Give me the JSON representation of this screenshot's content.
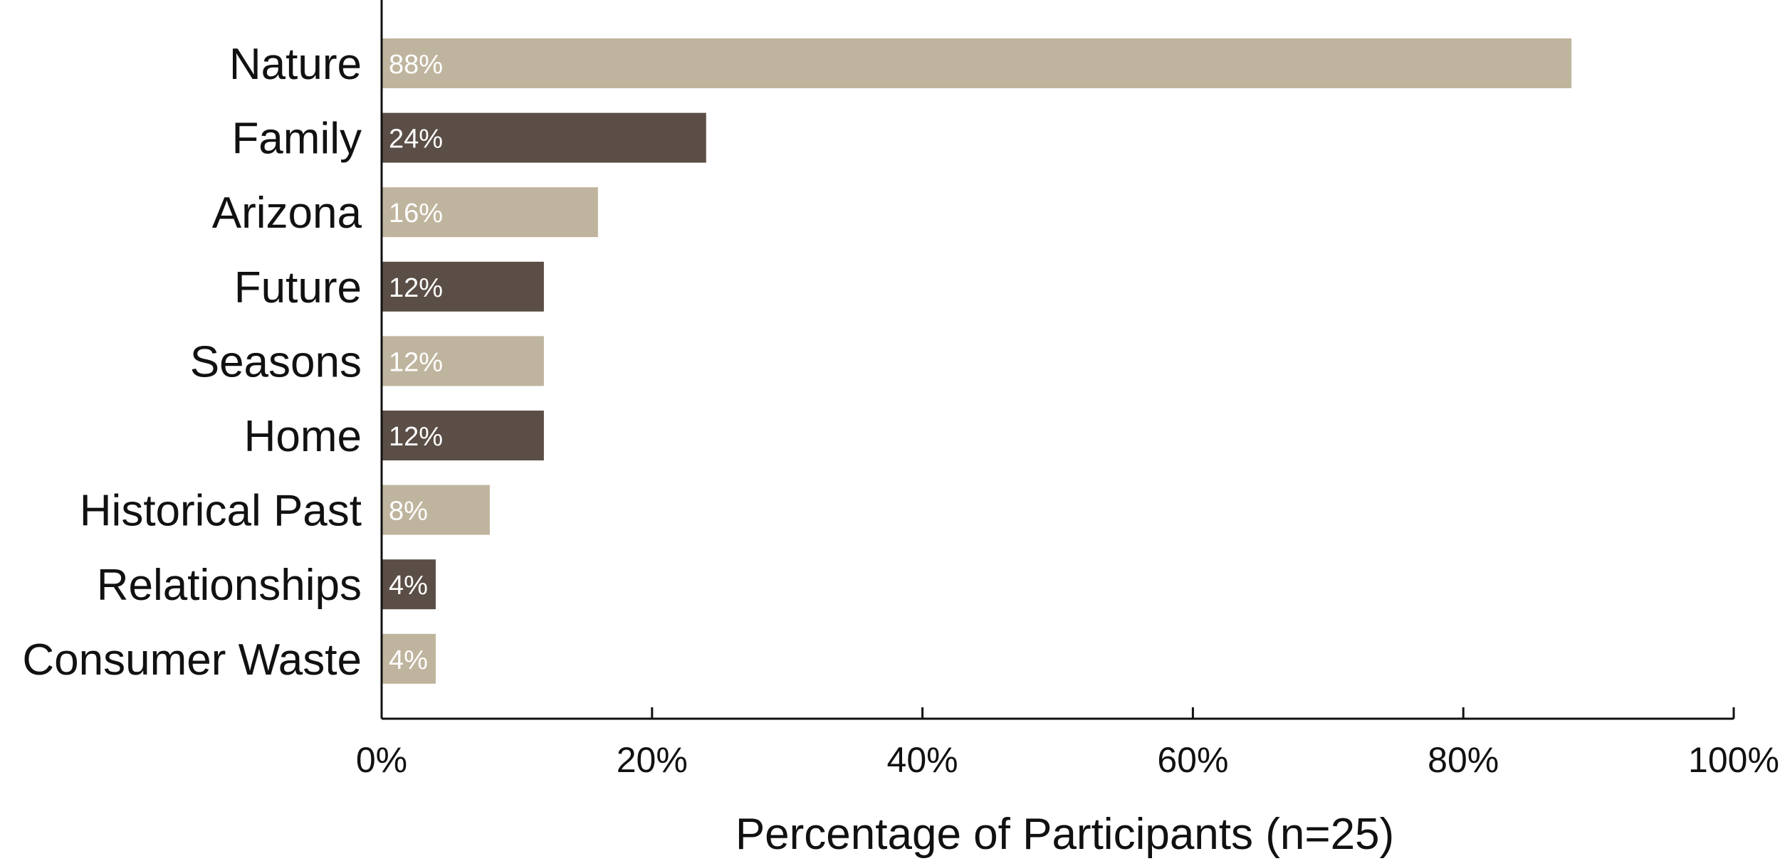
{
  "chart_data": {
    "type": "bar",
    "orientation": "horizontal",
    "categories": [
      "Nature",
      "Family",
      "Arizona",
      "Future",
      "Seasons",
      "Home",
      "Historical Past",
      "Relationships",
      "Consumer Waste"
    ],
    "values": [
      88,
      24,
      16,
      12,
      12,
      12,
      8,
      4,
      4
    ],
    "data_labels": [
      "88%",
      "24%",
      "16%",
      "12%",
      "12%",
      "12%",
      "8%",
      "4%",
      "4%"
    ],
    "bar_colors": [
      "#bfb49d",
      "#5a4e46",
      "#bfb49d",
      "#5a4e46",
      "#bfb49d",
      "#5a4e46",
      "#bfb49d",
      "#5a4e46",
      "#bfb49d"
    ],
    "xlabel": "Percentage of Participants (n=25)",
    "ylabel": "",
    "xlim": [
      0,
      100
    ],
    "x_ticks": [
      0,
      20,
      40,
      60,
      80,
      100
    ],
    "x_tick_labels": [
      "0%",
      "20%",
      "40%",
      "60%",
      "80%",
      "100%"
    ],
    "grid": false,
    "legend": "none"
  }
}
